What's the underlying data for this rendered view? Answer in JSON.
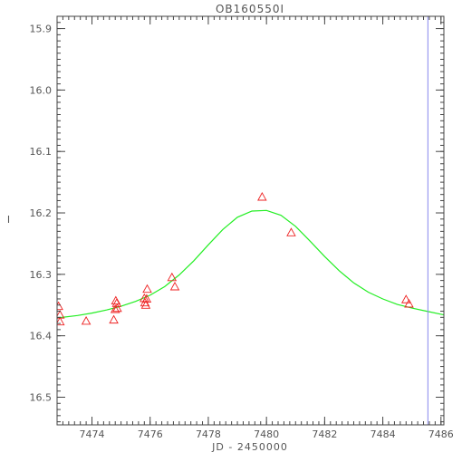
{
  "chart_data": {
    "type": "scatter",
    "title": "OB160550I",
    "xlabel": "JD - 2450000",
    "ylabel": "I",
    "xlim": [
      7472.8,
      7486.1
    ],
    "ylim": [
      16.545,
      15.88
    ],
    "y_inverted": true,
    "grid": false,
    "x_ticks": [
      7474,
      7476,
      7478,
      7480,
      7482,
      7484,
      7486
    ],
    "x_tick_labels": [
      "7474",
      "7476",
      "7478",
      "7480",
      "7482",
      "7484",
      "7486"
    ],
    "y_ticks": [
      15.9,
      16.0,
      16.1,
      16.2,
      16.3,
      16.4,
      16.5
    ],
    "y_tick_labels": [
      "15.9",
      "16.0",
      "16.1",
      "16.2",
      "16.3",
      "16.4",
      "16.5"
    ],
    "points": [
      {
        "x": 7472.85,
        "y": 16.352
      },
      {
        "x": 7472.9,
        "y": 16.366
      },
      {
        "x": 7472.9,
        "y": 16.377
      },
      {
        "x": 7473.8,
        "y": 16.376
      },
      {
        "x": 7474.75,
        "y": 16.374
      },
      {
        "x": 7474.8,
        "y": 16.357
      },
      {
        "x": 7474.82,
        "y": 16.343
      },
      {
        "x": 7474.85,
        "y": 16.347
      },
      {
        "x": 7474.87,
        "y": 16.355
      },
      {
        "x": 7475.8,
        "y": 16.339
      },
      {
        "x": 7475.82,
        "y": 16.346
      },
      {
        "x": 7475.85,
        "y": 16.35
      },
      {
        "x": 7475.88,
        "y": 16.34
      },
      {
        "x": 7475.9,
        "y": 16.324
      },
      {
        "x": 7476.75,
        "y": 16.305
      },
      {
        "x": 7476.85,
        "y": 16.32
      },
      {
        "x": 7479.85,
        "y": 16.174
      },
      {
        "x": 7480.85,
        "y": 16.232
      },
      {
        "x": 7484.8,
        "y": 16.341
      },
      {
        "x": 7484.9,
        "y": 16.348
      }
    ],
    "model": {
      "type": "line",
      "x": [
        7472.8,
        7473.5,
        7474.0,
        7474.5,
        7475.0,
        7475.5,
        7476.0,
        7476.5,
        7477.0,
        7477.5,
        7478.0,
        7478.5,
        7479.0,
        7479.5,
        7480.0,
        7480.5,
        7481.0,
        7481.5,
        7482.0,
        7482.5,
        7483.0,
        7483.5,
        7484.0,
        7484.5,
        7485.0,
        7485.5,
        7486.1
      ],
      "y": [
        16.371,
        16.367,
        16.363,
        16.358,
        16.352,
        16.344,
        16.334,
        16.32,
        16.301,
        16.278,
        16.252,
        16.227,
        16.207,
        16.197,
        16.196,
        16.204,
        16.222,
        16.246,
        16.271,
        16.294,
        16.314,
        16.329,
        16.34,
        16.349,
        16.355,
        16.36,
        16.366
      ]
    },
    "vline": {
      "x": 7485.55
    },
    "colors": {
      "points": "#ee2222",
      "model": "#22ee22",
      "vline": "#8888ee",
      "axes": "#444444",
      "text": "#555555"
    }
  }
}
